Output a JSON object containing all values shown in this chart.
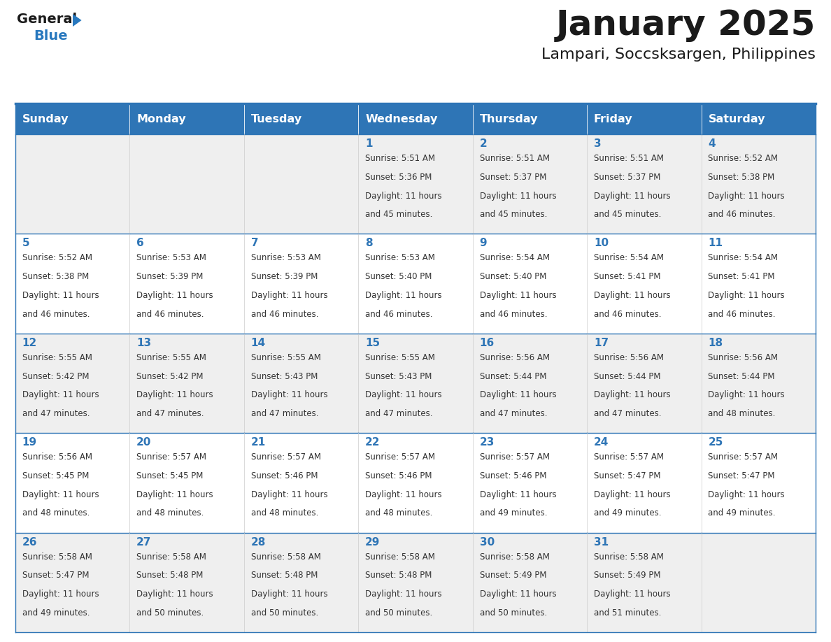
{
  "title": "January 2025",
  "subtitle": "Lampari, Soccsksargen, Philippines",
  "days_of_week": [
    "Sunday",
    "Monday",
    "Tuesday",
    "Wednesday",
    "Thursday",
    "Friday",
    "Saturday"
  ],
  "header_bg": "#2E75B6",
  "header_text": "#FFFFFF",
  "cell_bg_light": "#EFEFEF",
  "cell_bg_white": "#FFFFFF",
  "cell_border": "#2E75B6",
  "day_number_color": "#2E75B6",
  "text_color": "#333333",
  "title_color": "#1a1a1a",
  "logo_black": "#1a1a1a",
  "logo_blue": "#2878BE",
  "separator_color": "#2E75B6",
  "weeks": [
    [
      {
        "day": null,
        "sunrise": null,
        "sunset": null,
        "daylight": null
      },
      {
        "day": null,
        "sunrise": null,
        "sunset": null,
        "daylight": null
      },
      {
        "day": null,
        "sunrise": null,
        "sunset": null,
        "daylight": null
      },
      {
        "day": 1,
        "sunrise": "5:51 AM",
        "sunset": "5:36 PM",
        "daylight": "11 hours and 45 minutes."
      },
      {
        "day": 2,
        "sunrise": "5:51 AM",
        "sunset": "5:37 PM",
        "daylight": "11 hours and 45 minutes."
      },
      {
        "day": 3,
        "sunrise": "5:51 AM",
        "sunset": "5:37 PM",
        "daylight": "11 hours and 45 minutes."
      },
      {
        "day": 4,
        "sunrise": "5:52 AM",
        "sunset": "5:38 PM",
        "daylight": "11 hours and 46 minutes."
      }
    ],
    [
      {
        "day": 5,
        "sunrise": "5:52 AM",
        "sunset": "5:38 PM",
        "daylight": "11 hours and 46 minutes."
      },
      {
        "day": 6,
        "sunrise": "5:53 AM",
        "sunset": "5:39 PM",
        "daylight": "11 hours and 46 minutes."
      },
      {
        "day": 7,
        "sunrise": "5:53 AM",
        "sunset": "5:39 PM",
        "daylight": "11 hours and 46 minutes."
      },
      {
        "day": 8,
        "sunrise": "5:53 AM",
        "sunset": "5:40 PM",
        "daylight": "11 hours and 46 minutes."
      },
      {
        "day": 9,
        "sunrise": "5:54 AM",
        "sunset": "5:40 PM",
        "daylight": "11 hours and 46 minutes."
      },
      {
        "day": 10,
        "sunrise": "5:54 AM",
        "sunset": "5:41 PM",
        "daylight": "11 hours and 46 minutes."
      },
      {
        "day": 11,
        "sunrise": "5:54 AM",
        "sunset": "5:41 PM",
        "daylight": "11 hours and 46 minutes."
      }
    ],
    [
      {
        "day": 12,
        "sunrise": "5:55 AM",
        "sunset": "5:42 PM",
        "daylight": "11 hours and 47 minutes."
      },
      {
        "day": 13,
        "sunrise": "5:55 AM",
        "sunset": "5:42 PM",
        "daylight": "11 hours and 47 minutes."
      },
      {
        "day": 14,
        "sunrise": "5:55 AM",
        "sunset": "5:43 PM",
        "daylight": "11 hours and 47 minutes."
      },
      {
        "day": 15,
        "sunrise": "5:55 AM",
        "sunset": "5:43 PM",
        "daylight": "11 hours and 47 minutes."
      },
      {
        "day": 16,
        "sunrise": "5:56 AM",
        "sunset": "5:44 PM",
        "daylight": "11 hours and 47 minutes."
      },
      {
        "day": 17,
        "sunrise": "5:56 AM",
        "sunset": "5:44 PM",
        "daylight": "11 hours and 47 minutes."
      },
      {
        "day": 18,
        "sunrise": "5:56 AM",
        "sunset": "5:44 PM",
        "daylight": "11 hours and 48 minutes."
      }
    ],
    [
      {
        "day": 19,
        "sunrise": "5:56 AM",
        "sunset": "5:45 PM",
        "daylight": "11 hours and 48 minutes."
      },
      {
        "day": 20,
        "sunrise": "5:57 AM",
        "sunset": "5:45 PM",
        "daylight": "11 hours and 48 minutes."
      },
      {
        "day": 21,
        "sunrise": "5:57 AM",
        "sunset": "5:46 PM",
        "daylight": "11 hours and 48 minutes."
      },
      {
        "day": 22,
        "sunrise": "5:57 AM",
        "sunset": "5:46 PM",
        "daylight": "11 hours and 48 minutes."
      },
      {
        "day": 23,
        "sunrise": "5:57 AM",
        "sunset": "5:46 PM",
        "daylight": "11 hours and 49 minutes."
      },
      {
        "day": 24,
        "sunrise": "5:57 AM",
        "sunset": "5:47 PM",
        "daylight": "11 hours and 49 minutes."
      },
      {
        "day": 25,
        "sunrise": "5:57 AM",
        "sunset": "5:47 PM",
        "daylight": "11 hours and 49 minutes."
      }
    ],
    [
      {
        "day": 26,
        "sunrise": "5:58 AM",
        "sunset": "5:47 PM",
        "daylight": "11 hours and 49 minutes."
      },
      {
        "day": 27,
        "sunrise": "5:58 AM",
        "sunset": "5:48 PM",
        "daylight": "11 hours and 50 minutes."
      },
      {
        "day": 28,
        "sunrise": "5:58 AM",
        "sunset": "5:48 PM",
        "daylight": "11 hours and 50 minutes."
      },
      {
        "day": 29,
        "sunrise": "5:58 AM",
        "sunset": "5:48 PM",
        "daylight": "11 hours and 50 minutes."
      },
      {
        "day": 30,
        "sunrise": "5:58 AM",
        "sunset": "5:49 PM",
        "daylight": "11 hours and 50 minutes."
      },
      {
        "day": 31,
        "sunrise": "5:58 AM",
        "sunset": "5:49 PM",
        "daylight": "11 hours and 51 minutes."
      },
      {
        "day": null,
        "sunrise": null,
        "sunset": null,
        "daylight": null
      }
    ]
  ]
}
